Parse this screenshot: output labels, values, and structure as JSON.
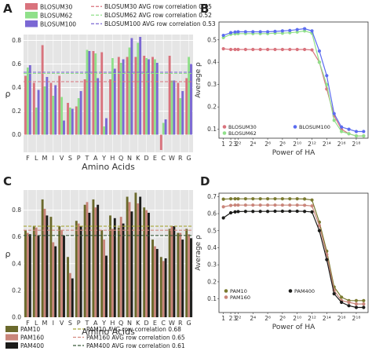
{
  "chart_data": [
    {
      "panel": "A",
      "type": "bar",
      "xlabel": "Amino Acids",
      "ylabel": "ρ",
      "ylim": [
        -0.15,
        0.85
      ],
      "yticks": [
        0.0,
        0.2,
        0.4,
        0.6,
        0.8
      ],
      "categories": [
        "F",
        "L",
        "M",
        "I",
        "V",
        "S",
        "P",
        "T",
        "A",
        "Y",
        "H",
        "Q",
        "N",
        "K",
        "D",
        "E",
        "C",
        "W",
        "R",
        "G"
      ],
      "series": [
        {
          "name": "BLOSUM30",
          "color": "#d9737d",
          "values": [
            0.5,
            0.44,
            0.76,
            0.44,
            0.5,
            0.27,
            0.24,
            0.47,
            0.71,
            0.7,
            0.47,
            0.66,
            0.66,
            0.66,
            0.67,
            0.66,
            -0.13,
            0.67,
            0.44,
            0.48
          ]
        },
        {
          "name": "BLOSUM62",
          "color": "#90e08a",
          "values": [
            0.57,
            0.23,
            0.41,
            0.33,
            0.32,
            0.23,
            0.31,
            0.72,
            0.69,
            0.07,
            0.65,
            0.61,
            0.74,
            0.78,
            0.65,
            0.64,
            0.1,
            0.46,
            0.31,
            0.66
          ]
        },
        {
          "name": "BLOSUM100",
          "color": "#7b68d4",
          "values": [
            0.59,
            0.38,
            0.49,
            0.42,
            0.12,
            0.22,
            0.37,
            0.71,
            0.48,
            0.14,
            0.56,
            0.64,
            0.82,
            0.83,
            0.64,
            0.61,
            0.13,
            0.46,
            0.37,
            0.6
          ]
        }
      ],
      "reference_lines": [
        {
          "label": "BLOSUM30 AVG row correlation 0.45",
          "value": 0.45,
          "color": "#d9737d"
        },
        {
          "label": "BLOSUM62 AVG row correlation 0.52",
          "value": 0.52,
          "color": "#90e08a"
        },
        {
          "label": "BLOSUM100 AVG row correlation 0.53",
          "value": 0.53,
          "color": "#7b68d4"
        }
      ]
    },
    {
      "panel": "B",
      "type": "line",
      "xlabel": "Power of HA",
      "ylabel": "Average ρ",
      "ylim": [
        0.06,
        0.58
      ],
      "yticks": [
        0.1,
        0.2,
        0.3,
        0.4,
        0.5
      ],
      "x_ticklabels": [
        "1",
        "2",
        "3",
        "2²",
        "2⁴",
        "2⁶",
        "2⁸",
        "2¹⁰",
        "2¹²",
        "2¹⁴",
        "2¹⁶",
        "2¹⁸"
      ],
      "x_tick_positions": [
        0,
        1,
        1.585,
        2,
        4,
        6,
        8,
        10,
        12,
        14,
        16,
        18
      ],
      "x": [
        0,
        1,
        1.585,
        2,
        3,
        4,
        5,
        6,
        7,
        8,
        9,
        10,
        11,
        12,
        13,
        14,
        15,
        16,
        17,
        18,
        19
      ],
      "series": [
        {
          "name": "BLOSUM30",
          "color": "#d9737d",
          "values": [
            0.46,
            0.457,
            0.457,
            0.457,
            0.457,
            0.457,
            0.457,
            0.457,
            0.457,
            0.457,
            0.457,
            0.457,
            0.457,
            0.455,
            0.4,
            0.28,
            0.16,
            0.1,
            0.08,
            0.07,
            0.07
          ]
        },
        {
          "name": "BLOSUM62",
          "color": "#90e08a",
          "values": [
            0.51,
            0.525,
            0.527,
            0.528,
            0.528,
            0.528,
            0.528,
            0.528,
            0.53,
            0.53,
            0.532,
            0.535,
            0.54,
            0.53,
            0.4,
            0.3,
            0.14,
            0.09,
            0.08,
            0.07,
            0.07
          ]
        },
        {
          "name": "BLOSUM100",
          "color": "#5b6cf0",
          "values": [
            0.52,
            0.532,
            0.535,
            0.536,
            0.536,
            0.536,
            0.536,
            0.536,
            0.538,
            0.54,
            0.542,
            0.546,
            0.55,
            0.54,
            0.45,
            0.34,
            0.17,
            0.11,
            0.1,
            0.09,
            0.09
          ]
        }
      ]
    },
    {
      "panel": "C",
      "type": "bar",
      "xlabel": "Amino Acids",
      "ylabel": "ρ",
      "ylim": [
        0.0,
        0.95
      ],
      "yticks": [
        0.0,
        0.2,
        0.4,
        0.6,
        0.8
      ],
      "categories": [
        "F",
        "L",
        "M",
        "I",
        "V",
        "S",
        "P",
        "T",
        "A",
        "Y",
        "H",
        "Q",
        "N",
        "K",
        "D",
        "E",
        "C",
        "W",
        "R",
        "G"
      ],
      "series": [
        {
          "name": "PAM10",
          "color": "#6b6a2c",
          "values": [
            0.65,
            0.68,
            0.88,
            0.75,
            0.68,
            0.45,
            0.72,
            0.84,
            0.88,
            0.65,
            0.76,
            0.67,
            0.9,
            0.93,
            0.82,
            0.58,
            0.45,
            0.66,
            0.63,
            0.66
          ]
        },
        {
          "name": "PAM160",
          "color": "#c9857a",
          "values": [
            0.63,
            0.67,
            0.81,
            0.56,
            0.65,
            0.33,
            0.7,
            0.86,
            0.82,
            0.58,
            0.66,
            0.75,
            0.86,
            0.85,
            0.8,
            0.53,
            0.42,
            0.68,
            0.63,
            0.62
          ]
        },
        {
          "name": "PAM400",
          "color": "#1c1c1a",
          "values": [
            0.62,
            0.61,
            0.76,
            0.53,
            0.61,
            0.29,
            0.68,
            0.78,
            0.84,
            0.46,
            0.74,
            0.7,
            0.79,
            0.9,
            0.78,
            0.51,
            0.44,
            0.68,
            0.58,
            0.59
          ]
        }
      ],
      "reference_lines": [
        {
          "label": "PAM10 AVG row correlation 0.68",
          "value": 0.68,
          "color": "#a8a83a"
        },
        {
          "label": "PAM160 AVG row correlation 0.65",
          "value": 0.65,
          "color": "#d48a80"
        },
        {
          "label": "PAM400 AVG row correlation 0.61",
          "value": 0.61,
          "color": "#3a5a3a"
        }
      ]
    },
    {
      "panel": "D",
      "type": "line",
      "xlabel": "Power of HA",
      "ylabel": "Average ρ",
      "ylim": [
        0.02,
        0.72
      ],
      "yticks": [
        0.1,
        0.2,
        0.3,
        0.4,
        0.5,
        0.6,
        0.7
      ],
      "x_ticklabels": [
        "1",
        "2",
        "3",
        "2²",
        "2⁴",
        "2⁶",
        "2⁸",
        "2¹⁰",
        "2¹²",
        "2¹⁴",
        "2¹⁶",
        "2¹⁸"
      ],
      "x_tick_positions": [
        0,
        1,
        1.585,
        2,
        4,
        6,
        8,
        10,
        12,
        14,
        16,
        18
      ],
      "x": [
        0,
        1,
        1.585,
        2,
        3,
        4,
        5,
        6,
        7,
        8,
        9,
        10,
        11,
        12,
        13,
        14,
        15,
        16,
        17,
        18,
        19
      ],
      "series": [
        {
          "name": "PAM10",
          "color": "#7a7a30",
          "values": [
            0.685,
            0.687,
            0.687,
            0.687,
            0.687,
            0.687,
            0.687,
            0.687,
            0.687,
            0.687,
            0.687,
            0.687,
            0.686,
            0.68,
            0.55,
            0.38,
            0.17,
            0.11,
            0.09,
            0.09,
            0.09
          ]
        },
        {
          "name": "PAM160",
          "color": "#c9857a",
          "values": [
            0.64,
            0.648,
            0.65,
            0.65,
            0.65,
            0.65,
            0.65,
            0.65,
            0.65,
            0.65,
            0.65,
            0.65,
            0.649,
            0.645,
            0.53,
            0.36,
            0.15,
            0.09,
            0.08,
            0.07,
            0.07
          ]
        },
        {
          "name": "PAM400",
          "color": "#1c1c1a",
          "values": [
            0.575,
            0.605,
            0.61,
            0.612,
            0.613,
            0.613,
            0.613,
            0.613,
            0.614,
            0.614,
            0.614,
            0.614,
            0.613,
            0.61,
            0.5,
            0.33,
            0.13,
            0.08,
            0.06,
            0.05,
            0.05
          ]
        }
      ]
    }
  ]
}
